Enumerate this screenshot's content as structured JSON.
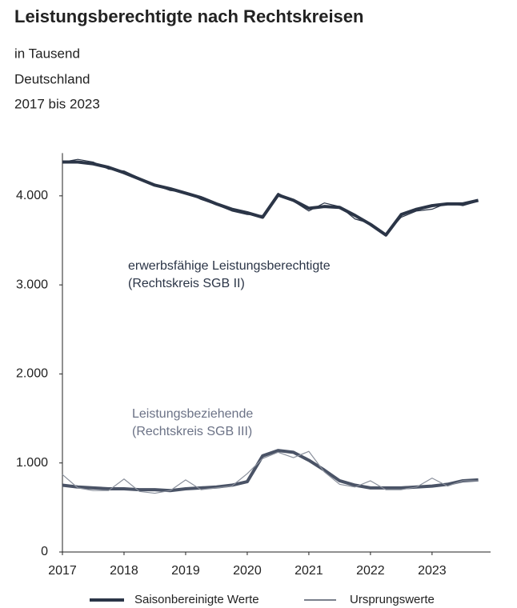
{
  "chart_data": {
    "type": "line",
    "title": "Leistungsberechtigte nach Rechtskreisen",
    "subtitle": [
      "in Tausend",
      "Deutschland",
      "2017 bis 2023"
    ],
    "x": [
      2017,
      2017.25,
      2017.5,
      2017.75,
      2018,
      2018.25,
      2018.5,
      2018.75,
      2019,
      2019.25,
      2019.5,
      2019.75,
      2020,
      2020.25,
      2020.5,
      2020.75,
      2021,
      2021.25,
      2021.5,
      2021.75,
      2022,
      2022.25,
      2022.5,
      2022.75,
      2023,
      2023.25,
      2023.5,
      2023.75
    ],
    "series": [
      {
        "style": "seasonal",
        "color": "#2b3547",
        "values": [
          4380,
          4380,
          4360,
          4320,
          4260,
          4190,
          4120,
          4080,
          4030,
          3980,
          3910,
          3850,
          3810,
          3760,
          4010,
          3950,
          3860,
          3880,
          3870,
          3780,
          3680,
          3560,
          3790,
          3850,
          3890,
          3910,
          3910,
          3950
        ]
      },
      {
        "style": "original",
        "color": "#2b3547",
        "values": [
          4380,
          4410,
          4380,
          4300,
          4280,
          4200,
          4120,
          4060,
          4040,
          3960,
          3900,
          3830,
          3790,
          3780,
          4030,
          3940,
          3830,
          3920,
          3880,
          3740,
          3690,
          3570,
          3760,
          3830,
          3850,
          3920,
          3890,
          3940
        ]
      },
      {
        "style": "seasonal",
        "color": "#4a5366",
        "values": [
          750,
          730,
          720,
          710,
          710,
          700,
          700,
          690,
          710,
          720,
          730,
          750,
          790,
          1080,
          1140,
          1120,
          1030,
          920,
          800,
          750,
          720,
          720,
          720,
          730,
          740,
          760,
          800,
          810
        ]
      },
      {
        "style": "original",
        "color": "#8a909c",
        "values": [
          870,
          720,
          690,
          690,
          820,
          680,
          660,
          690,
          810,
          700,
          720,
          740,
          880,
          1050,
          1120,
          1060,
          1130,
          900,
          760,
          730,
          800,
          700,
          700,
          730,
          830,
          740,
          800,
          800
        ]
      }
    ],
    "annotations": [
      {
        "lines": [
          "erwerbsfähige Leistungsberechtigte",
          "(Rechtskreis SGB II)"
        ],
        "color": "#2b3547"
      },
      {
        "lines": [
          "Leistungsbeziehende",
          "(Rechtskreis SGB III)"
        ],
        "color": "#6b7286"
      }
    ],
    "legend": [
      {
        "name": "Saisonbereinigte Werte",
        "style": "seasonal"
      },
      {
        "name": "Ursprungswerte",
        "style": "original"
      }
    ],
    "xlim": [
      2017,
      2023.95
    ],
    "xticks": [
      2017,
      2018,
      2019,
      2020,
      2021,
      2022,
      2023
    ],
    "ylim": [
      0,
      4480
    ],
    "yticks": [
      0,
      {
        "value": 1000,
        "label": "1.000"
      },
      {
        "value": 2000,
        "label": "2.000"
      },
      {
        "value": 3000,
        "label": "3.000"
      },
      {
        "value": 4000,
        "label": "4.000"
      }
    ],
    "grid": false
  }
}
